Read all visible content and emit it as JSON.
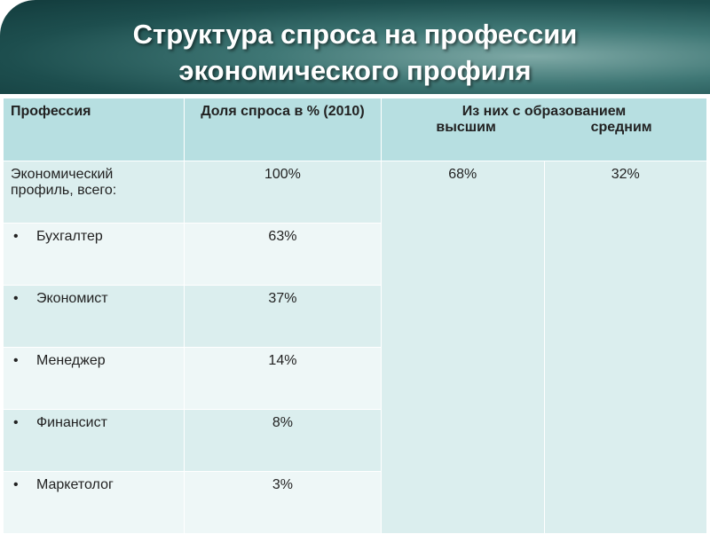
{
  "header": {
    "title_lines": [
      "Структура спроса на профессии",
      "экономического профиля"
    ]
  },
  "table": {
    "columns": [
      "Профессия",
      "Доля спроса в % (2010)",
      "Из них с образованием"
    ],
    "subcolumns": [
      "высшим",
      "средним"
    ],
    "rows": [
      [
        "Экономический профиль, всего:",
        "100%",
        "68%",
        "32%"
      ],
      [
        "Бухгалтер",
        "63%"
      ],
      [
        "Экономист",
        "37%"
      ],
      [
        "Менеджер",
        "14%"
      ],
      [
        "Финансист",
        "8%"
      ],
      [
        "Маркетолог",
        "3%"
      ]
    ]
  }
}
